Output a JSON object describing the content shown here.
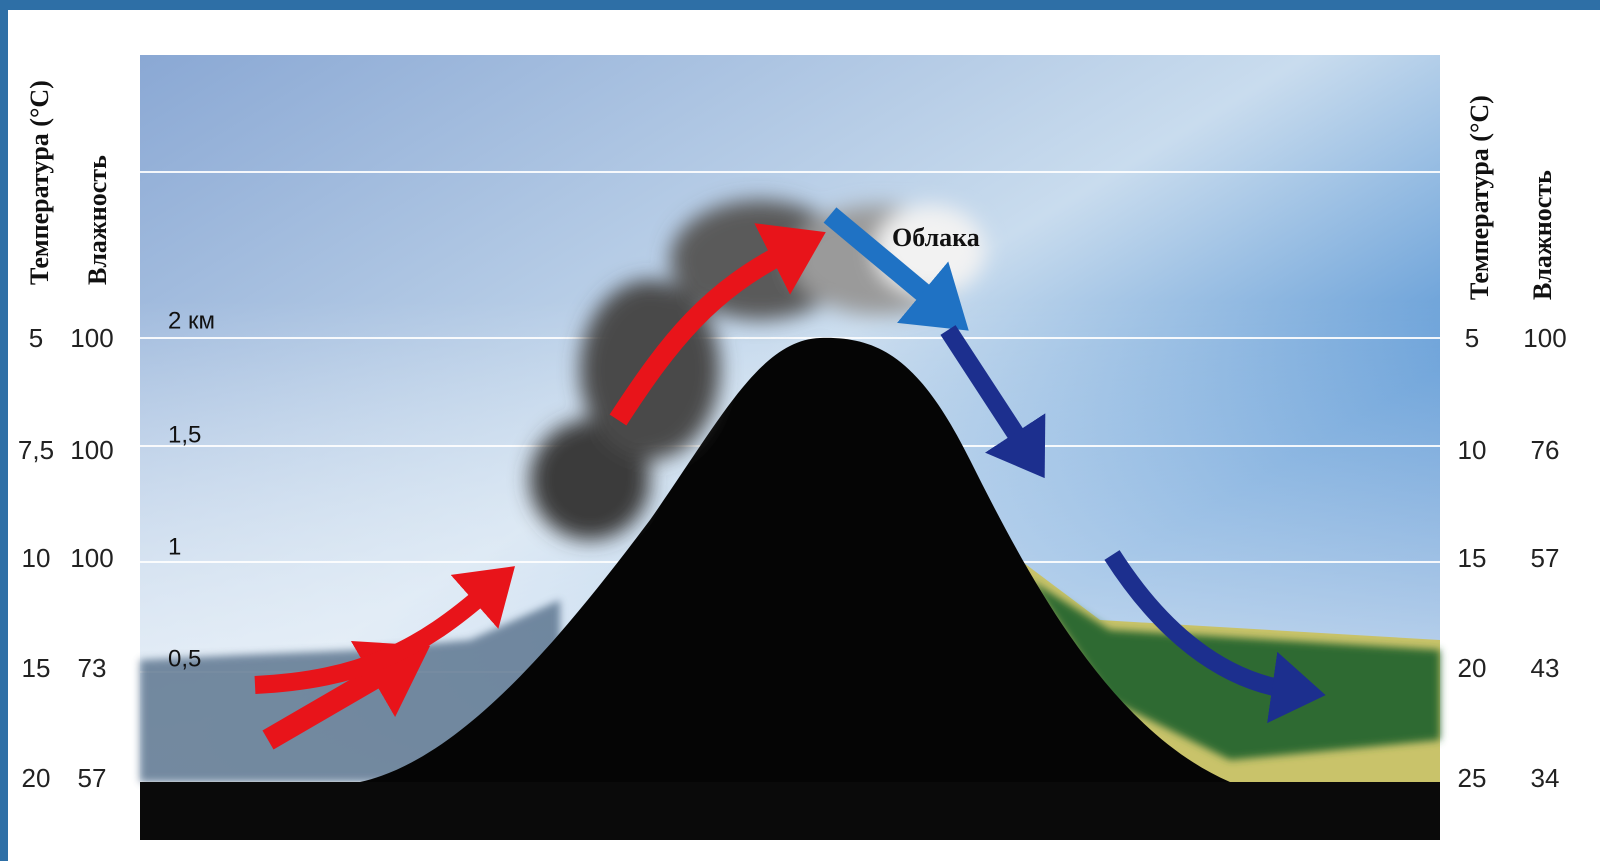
{
  "left_scale": {
    "temperature_title": "Температура (°C)",
    "humidity_title": "Влажность",
    "rows": [
      {
        "temperature": "5",
        "humidity": "100"
      },
      {
        "temperature": "7,5",
        "humidity": "100"
      },
      {
        "temperature": "10",
        "humidity": "100"
      },
      {
        "temperature": "15",
        "humidity": "73"
      },
      {
        "temperature": "20",
        "humidity": "57"
      }
    ]
  },
  "right_scale": {
    "temperature_title": "Температура (°C)",
    "humidity_title": "Влажность",
    "rows": [
      {
        "temperature": "5",
        "humidity": "100"
      },
      {
        "temperature": "10",
        "humidity": "76"
      },
      {
        "temperature": "15",
        "humidity": "57"
      },
      {
        "temperature": "20",
        "humidity": "43"
      },
      {
        "temperature": "25",
        "humidity": "34"
      }
    ]
  },
  "altitude_labels": [
    "2 км",
    "1,5",
    "1",
    "0,5"
  ],
  "cloud_label": "Облака"
}
